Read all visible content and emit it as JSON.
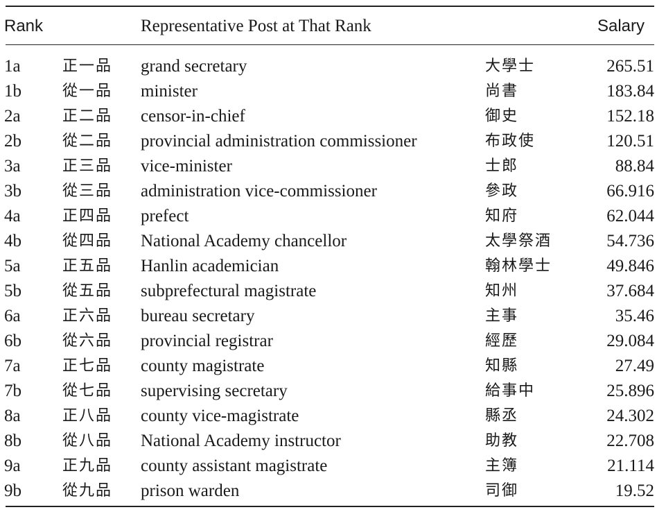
{
  "table": {
    "headers": {
      "rank": "Rank",
      "post": "Representative Post at That Rank",
      "salary": "Salary"
    },
    "rows": [
      {
        "rank": "1a",
        "rank_zh": "正一品",
        "post": "grand secretary",
        "post_zh": "大學士",
        "salary": "265.51"
      },
      {
        "rank": "1b",
        "rank_zh": "從一品",
        "post": "minister",
        "post_zh": "尚書",
        "salary": "183.84"
      },
      {
        "rank": "2a",
        "rank_zh": "正二品",
        "post": "censor-in-chief",
        "post_zh": "御史",
        "salary": "152.18"
      },
      {
        "rank": "2b",
        "rank_zh": "從二品",
        "post": "provincial administration commissioner",
        "post_zh": "布政使",
        "salary": "120.51"
      },
      {
        "rank": "3a",
        "rank_zh": "正三品",
        "post": "vice-minister",
        "post_zh": "士郎",
        "salary": "88.84"
      },
      {
        "rank": "3b",
        "rank_zh": "從三品",
        "post": "administration vice-commissioner",
        "post_zh": "參政",
        "salary": "66.916"
      },
      {
        "rank": "4a",
        "rank_zh": "正四品",
        "post": "prefect",
        "post_zh": "知府",
        "salary": "62.044"
      },
      {
        "rank": "4b",
        "rank_zh": "從四品",
        "post": "National Academy chancellor",
        "post_zh": "太學祭酒",
        "salary": "54.736"
      },
      {
        "rank": "5a",
        "rank_zh": "正五品",
        "post": "Hanlin academician",
        "post_zh": "翰林學士",
        "salary": "49.846"
      },
      {
        "rank": "5b",
        "rank_zh": "從五品",
        "post": "subprefectural magistrate",
        "post_zh": "知州",
        "salary": "37.684"
      },
      {
        "rank": "6a",
        "rank_zh": "正六品",
        "post": "bureau secretary",
        "post_zh": "主事",
        "salary": "35.46"
      },
      {
        "rank": "6b",
        "rank_zh": "從六品",
        "post": "provincial registrar",
        "post_zh": "經歷",
        "salary": "29.084"
      },
      {
        "rank": "7a",
        "rank_zh": "正七品",
        "post": "county magistrate",
        "post_zh": "知縣",
        "salary": "27.49"
      },
      {
        "rank": "7b",
        "rank_zh": "從七品",
        "post": "supervising secretary",
        "post_zh": "給事中",
        "salary": "25.896"
      },
      {
        "rank": "8a",
        "rank_zh": "正八品",
        "post": "county vice-magistrate",
        "post_zh": "縣丞",
        "salary": "24.302"
      },
      {
        "rank": "8b",
        "rank_zh": "從八品",
        "post": "National Academy instructor",
        "post_zh": "助教",
        "salary": "22.708"
      },
      {
        "rank": "9a",
        "rank_zh": "正九品",
        "post": "county assistant magistrate",
        "post_zh": "主簿",
        "salary": "21.114"
      },
      {
        "rank": "9b",
        "rank_zh": "從九品",
        "post": "prison warden",
        "post_zh": "司御",
        "salary": "19.52"
      }
    ]
  }
}
